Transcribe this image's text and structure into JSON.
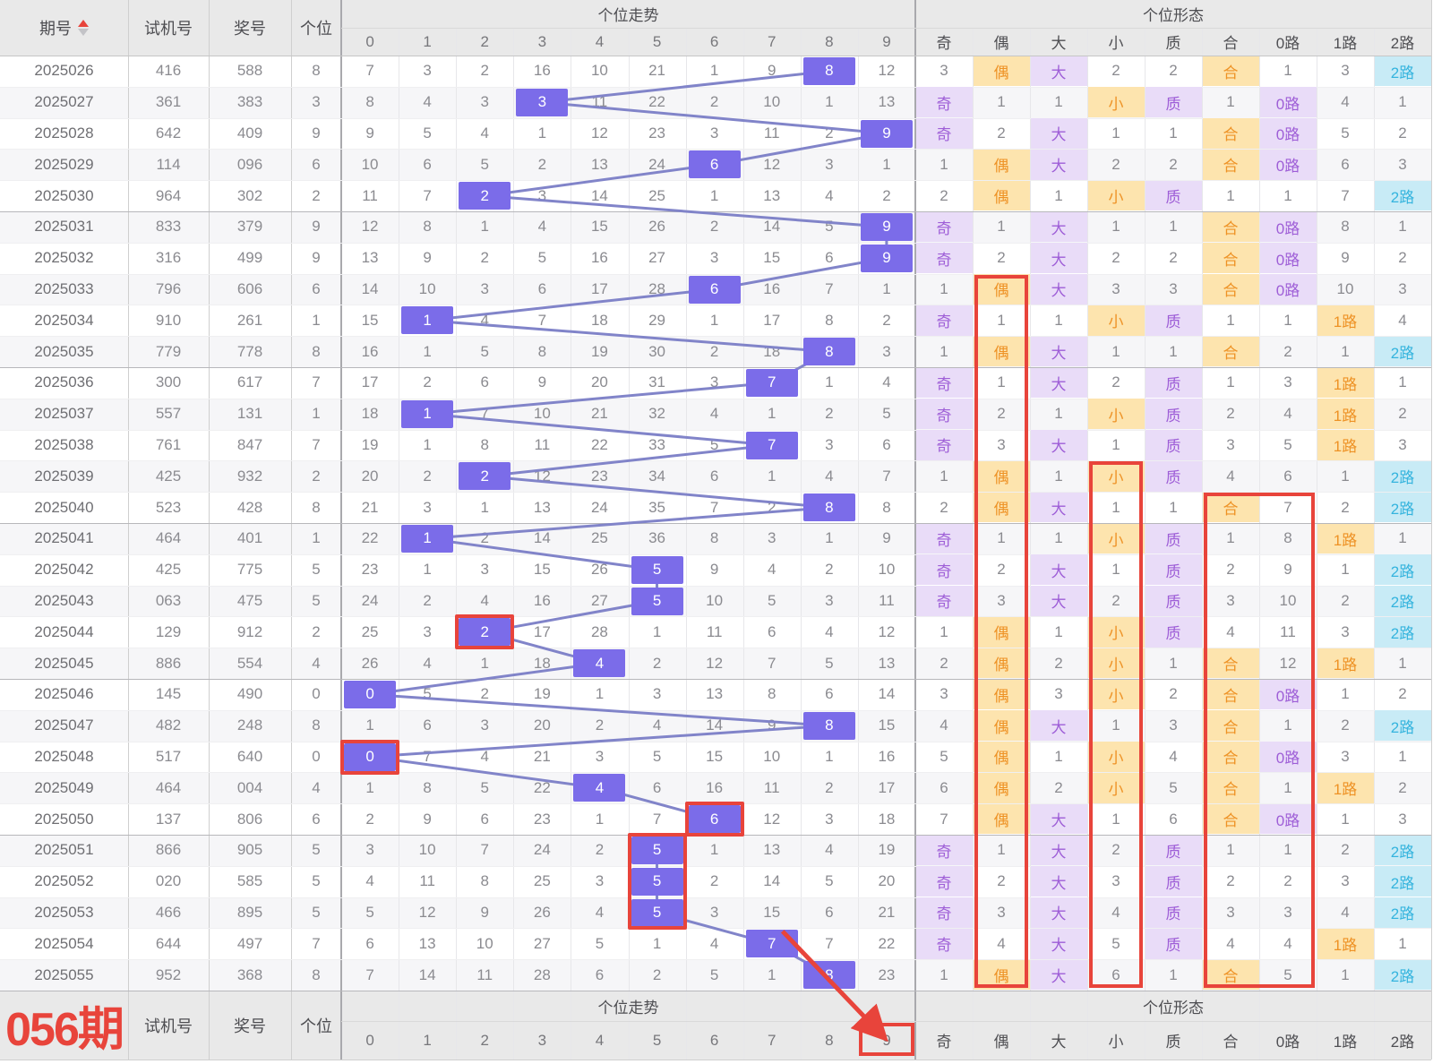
{
  "header": {
    "period": "期号",
    "test": "试机号",
    "prize": "奖号",
    "digit": "个位",
    "trend_group": "个位走势",
    "form_group": "个位形态",
    "trend_cols": [
      "0",
      "1",
      "2",
      "3",
      "4",
      "5",
      "6",
      "7",
      "8",
      "9"
    ],
    "form_cols": [
      "奇",
      "偶",
      "大",
      "小",
      "质",
      "合",
      "0路",
      "1路",
      "2路"
    ]
  },
  "footer": {
    "next_period": "056期",
    "test": "试机号",
    "prize": "奖号",
    "digit": "个位",
    "trend_group": "个位走势",
    "form_group": "个位形态",
    "trend_cols": [
      "0",
      "1",
      "2",
      "3",
      "4",
      "5",
      "6",
      "7",
      "8",
      "9"
    ],
    "form_cols": [
      "奇",
      "偶",
      "大",
      "小",
      "质",
      "合",
      "0路",
      "1路",
      "2路"
    ]
  },
  "colors": {
    "hit_bg": "#7b6ce9",
    "line": "#8184c9",
    "red": "#e8443b",
    "purple_bg": "#e9dcf8",
    "purple_text": "#9e5ed7",
    "orange_bg": "#fde4ae",
    "orange_text": "#ee9225",
    "cyan_bg": "#c8ebf6",
    "cyan_text": "#35b4de",
    "stripe": "#f6f6f8",
    "header_bg": "#e9e9e9"
  },
  "form_hit_styles": {
    "奇": "purple",
    "偶": "orange",
    "大": "purple",
    "小": "orange",
    "质": "purple",
    "合": "orange",
    "0路": "purple",
    "1路": "orange",
    "2路": "cyan"
  },
  "rows": [
    {
      "period": "2025026",
      "test": "416",
      "prize": "588",
      "digit": 8,
      "trend": [
        "7",
        "3",
        "2",
        "16",
        "10",
        "21",
        "1",
        "9",
        "8",
        "12"
      ],
      "form": [
        "3",
        "偶",
        "大",
        "2",
        "2",
        "合",
        "1",
        "3",
        "2路"
      ]
    },
    {
      "period": "2025027",
      "test": "361",
      "prize": "383",
      "digit": 3,
      "trend": [
        "8",
        "4",
        "3",
        "3",
        "11",
        "22",
        "2",
        "10",
        "1",
        "13"
      ],
      "form": [
        "奇",
        "1",
        "1",
        "小",
        "质",
        "1",
        "0路",
        "4",
        "1"
      ]
    },
    {
      "period": "2025028",
      "test": "642",
      "prize": "409",
      "digit": 9,
      "trend": [
        "9",
        "5",
        "4",
        "1",
        "12",
        "23",
        "3",
        "11",
        "2",
        "9"
      ],
      "form": [
        "奇",
        "2",
        "大",
        "1",
        "1",
        "合",
        "0路",
        "5",
        "2"
      ]
    },
    {
      "period": "2025029",
      "test": "114",
      "prize": "096",
      "digit": 6,
      "trend": [
        "10",
        "6",
        "5",
        "2",
        "13",
        "24",
        "6",
        "12",
        "3",
        "1"
      ],
      "form": [
        "1",
        "偶",
        "大",
        "2",
        "2",
        "合",
        "0路",
        "6",
        "3"
      ]
    },
    {
      "period": "2025030",
      "test": "964",
      "prize": "302",
      "digit": 2,
      "trend": [
        "11",
        "7",
        "2",
        "3",
        "14",
        "25",
        "1",
        "13",
        "4",
        "2"
      ],
      "form": [
        "2",
        "偶",
        "1",
        "小",
        "质",
        "1",
        "1",
        "7",
        "2路"
      ]
    },
    {
      "period": "2025031",
      "test": "833",
      "prize": "379",
      "digit": 9,
      "trend": [
        "12",
        "8",
        "1",
        "4",
        "15",
        "26",
        "2",
        "14",
        "5",
        "9"
      ],
      "form": [
        "奇",
        "1",
        "大",
        "1",
        "1",
        "合",
        "0路",
        "8",
        "1"
      ]
    },
    {
      "period": "2025032",
      "test": "316",
      "prize": "499",
      "digit": 9,
      "trend": [
        "13",
        "9",
        "2",
        "5",
        "16",
        "27",
        "3",
        "15",
        "6",
        "9"
      ],
      "form": [
        "奇",
        "2",
        "大",
        "2",
        "2",
        "合",
        "0路",
        "9",
        "2"
      ]
    },
    {
      "period": "2025033",
      "test": "796",
      "prize": "606",
      "digit": 6,
      "trend": [
        "14",
        "10",
        "3",
        "6",
        "17",
        "28",
        "6",
        "16",
        "7",
        "1"
      ],
      "form": [
        "1",
        "偶",
        "大",
        "3",
        "3",
        "合",
        "0路",
        "10",
        "3"
      ]
    },
    {
      "period": "2025034",
      "test": "910",
      "prize": "261",
      "digit": 1,
      "trend": [
        "15",
        "1",
        "4",
        "7",
        "18",
        "29",
        "1",
        "17",
        "8",
        "2"
      ],
      "form": [
        "奇",
        "1",
        "1",
        "小",
        "质",
        "1",
        "1",
        "1路",
        "4"
      ]
    },
    {
      "period": "2025035",
      "test": "779",
      "prize": "778",
      "digit": 8,
      "trend": [
        "16",
        "1",
        "5",
        "8",
        "19",
        "30",
        "2",
        "18",
        "8",
        "3"
      ],
      "form": [
        "1",
        "偶",
        "大",
        "1",
        "1",
        "合",
        "2",
        "1",
        "2路"
      ]
    },
    {
      "period": "2025036",
      "test": "300",
      "prize": "617",
      "digit": 7,
      "trend": [
        "17",
        "2",
        "6",
        "9",
        "20",
        "31",
        "3",
        "7",
        "1",
        "4"
      ],
      "form": [
        "奇",
        "1",
        "大",
        "2",
        "质",
        "1",
        "3",
        "1路",
        "1"
      ]
    },
    {
      "period": "2025037",
      "test": "557",
      "prize": "131",
      "digit": 1,
      "trend": [
        "18",
        "1",
        "7",
        "10",
        "21",
        "32",
        "4",
        "1",
        "2",
        "5"
      ],
      "form": [
        "奇",
        "2",
        "1",
        "小",
        "质",
        "2",
        "4",
        "1路",
        "2"
      ]
    },
    {
      "period": "2025038",
      "test": "761",
      "prize": "847",
      "digit": 7,
      "trend": [
        "19",
        "1",
        "8",
        "11",
        "22",
        "33",
        "5",
        "7",
        "3",
        "6"
      ],
      "form": [
        "奇",
        "3",
        "大",
        "1",
        "质",
        "3",
        "5",
        "1路",
        "3"
      ]
    },
    {
      "period": "2025039",
      "test": "425",
      "prize": "932",
      "digit": 2,
      "trend": [
        "20",
        "2",
        "2",
        "12",
        "23",
        "34",
        "6",
        "1",
        "4",
        "7"
      ],
      "form": [
        "1",
        "偶",
        "1",
        "小",
        "质",
        "4",
        "6",
        "1",
        "2路"
      ]
    },
    {
      "period": "2025040",
      "test": "523",
      "prize": "428",
      "digit": 8,
      "trend": [
        "21",
        "3",
        "1",
        "13",
        "24",
        "35",
        "7",
        "2",
        "8",
        "8"
      ],
      "form": [
        "2",
        "偶",
        "大",
        "1",
        "1",
        "合",
        "7",
        "2",
        "2路"
      ]
    },
    {
      "period": "2025041",
      "test": "464",
      "prize": "401",
      "digit": 1,
      "trend": [
        "22",
        "1",
        "2",
        "14",
        "25",
        "36",
        "8",
        "3",
        "1",
        "9"
      ],
      "form": [
        "奇",
        "1",
        "1",
        "小",
        "质",
        "1",
        "8",
        "1路",
        "1"
      ]
    },
    {
      "period": "2025042",
      "test": "425",
      "prize": "775",
      "digit": 5,
      "trend": [
        "23",
        "1",
        "3",
        "15",
        "26",
        "5",
        "9",
        "4",
        "2",
        "10"
      ],
      "form": [
        "奇",
        "2",
        "大",
        "1",
        "质",
        "2",
        "9",
        "1",
        "2路"
      ]
    },
    {
      "period": "2025043",
      "test": "063",
      "prize": "475",
      "digit": 5,
      "trend": [
        "24",
        "2",
        "4",
        "16",
        "27",
        "5",
        "10",
        "5",
        "3",
        "11"
      ],
      "form": [
        "奇",
        "3",
        "大",
        "2",
        "质",
        "3",
        "10",
        "2",
        "2路"
      ]
    },
    {
      "period": "2025044",
      "test": "129",
      "prize": "912",
      "digit": 2,
      "trend": [
        "25",
        "3",
        "2",
        "17",
        "28",
        "1",
        "11",
        "6",
        "4",
        "12"
      ],
      "form": [
        "1",
        "偶",
        "1",
        "小",
        "质",
        "4",
        "11",
        "3",
        "2路"
      ]
    },
    {
      "period": "2025045",
      "test": "886",
      "prize": "554",
      "digit": 4,
      "trend": [
        "26",
        "4",
        "1",
        "18",
        "4",
        "2",
        "12",
        "7",
        "5",
        "13"
      ],
      "form": [
        "2",
        "偶",
        "2",
        "小",
        "1",
        "合",
        "12",
        "1路",
        "1"
      ]
    },
    {
      "period": "2025046",
      "test": "145",
      "prize": "490",
      "digit": 0,
      "trend": [
        "0",
        "5",
        "2",
        "19",
        "1",
        "3",
        "13",
        "8",
        "6",
        "14"
      ],
      "form": [
        "3",
        "偶",
        "3",
        "小",
        "2",
        "合",
        "0路",
        "1",
        "2"
      ]
    },
    {
      "period": "2025047",
      "test": "482",
      "prize": "248",
      "digit": 8,
      "trend": [
        "1",
        "6",
        "3",
        "20",
        "2",
        "4",
        "14",
        "9",
        "8",
        "15"
      ],
      "form": [
        "4",
        "偶",
        "大",
        "1",
        "3",
        "合",
        "1",
        "2",
        "2路"
      ]
    },
    {
      "period": "2025048",
      "test": "517",
      "prize": "640",
      "digit": 0,
      "trend": [
        "0",
        "7",
        "4",
        "21",
        "3",
        "5",
        "15",
        "10",
        "1",
        "16"
      ],
      "form": [
        "5",
        "偶",
        "1",
        "小",
        "4",
        "合",
        "0路",
        "3",
        "1"
      ]
    },
    {
      "period": "2025049",
      "test": "464",
      "prize": "004",
      "digit": 4,
      "trend": [
        "1",
        "8",
        "5",
        "22",
        "4",
        "6",
        "16",
        "11",
        "2",
        "17"
      ],
      "form": [
        "6",
        "偶",
        "2",
        "小",
        "5",
        "合",
        "1",
        "1路",
        "2"
      ]
    },
    {
      "period": "2025050",
      "test": "137",
      "prize": "806",
      "digit": 6,
      "trend": [
        "2",
        "9",
        "6",
        "23",
        "1",
        "7",
        "6",
        "12",
        "3",
        "18"
      ],
      "form": [
        "7",
        "偶",
        "大",
        "1",
        "6",
        "合",
        "0路",
        "1",
        "3"
      ]
    },
    {
      "period": "2025051",
      "test": "866",
      "prize": "905",
      "digit": 5,
      "trend": [
        "3",
        "10",
        "7",
        "24",
        "2",
        "5",
        "1",
        "13",
        "4",
        "19"
      ],
      "form": [
        "奇",
        "1",
        "大",
        "2",
        "质",
        "1",
        "1",
        "2",
        "2路"
      ]
    },
    {
      "period": "2025052",
      "test": "020",
      "prize": "585",
      "digit": 5,
      "trend": [
        "4",
        "11",
        "8",
        "25",
        "3",
        "5",
        "2",
        "14",
        "5",
        "20"
      ],
      "form": [
        "奇",
        "2",
        "大",
        "3",
        "质",
        "2",
        "2",
        "3",
        "2路"
      ]
    },
    {
      "period": "2025053",
      "test": "466",
      "prize": "895",
      "digit": 5,
      "trend": [
        "5",
        "12",
        "9",
        "26",
        "4",
        "5",
        "3",
        "15",
        "6",
        "21"
      ],
      "form": [
        "奇",
        "3",
        "大",
        "4",
        "质",
        "3",
        "3",
        "4",
        "2路"
      ]
    },
    {
      "period": "2025054",
      "test": "644",
      "prize": "497",
      "digit": 7,
      "trend": [
        "6",
        "13",
        "10",
        "27",
        "5",
        "1",
        "4",
        "7",
        "7",
        "22"
      ],
      "form": [
        "奇",
        "4",
        "大",
        "5",
        "质",
        "4",
        "4",
        "1路",
        "1"
      ]
    },
    {
      "period": "2025055",
      "test": "952",
      "prize": "368",
      "digit": 8,
      "trend": [
        "7",
        "14",
        "11",
        "28",
        "6",
        "2",
        "5",
        "1",
        "8",
        "23"
      ],
      "form": [
        "1",
        "偶",
        "大",
        "6",
        "1",
        "合",
        "5",
        "1",
        "2路"
      ]
    }
  ],
  "annotations": {
    "red_trend_cell_boxes": [
      {
        "row": 18,
        "col": 2
      },
      {
        "row": 22,
        "col": 0
      },
      {
        "row": 24,
        "col": 6
      },
      {
        "row": 25,
        "col": 5,
        "row_end": 27
      }
    ],
    "red_footer_box_col": 9,
    "red_form_column_boxes": [
      {
        "col_start": 1,
        "col_end": 1,
        "row_start": 7
      },
      {
        "col_start": 3,
        "col_end": 3,
        "row_start": 13
      },
      {
        "col_start": 5,
        "col_end": 6,
        "row_start": 14
      }
    ],
    "red_arrow": {
      "from_row": 28,
      "from_col": 7,
      "to_footer_col": 9
    }
  }
}
